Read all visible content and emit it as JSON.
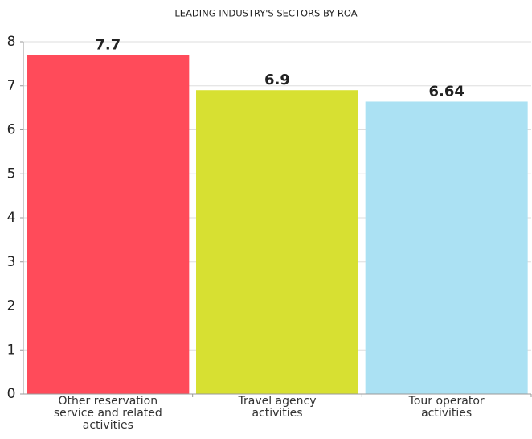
{
  "chart_data": {
    "type": "bar",
    "title": "LEADING INDUSTRY'S SECTORS BY ROA",
    "categories": [
      "Other reservation service and related activities",
      "Travel agency activities",
      "Tour operator activities"
    ],
    "values": [
      7.7,
      6.9,
      6.64
    ],
    "colors": [
      "#ff4b5a",
      "#d7e032",
      "#abe1f3"
    ],
    "ylim": [
      0,
      8
    ],
    "yticks": [
      0,
      1,
      2,
      3,
      4,
      5,
      6,
      7,
      8
    ],
    "grid": true
  }
}
